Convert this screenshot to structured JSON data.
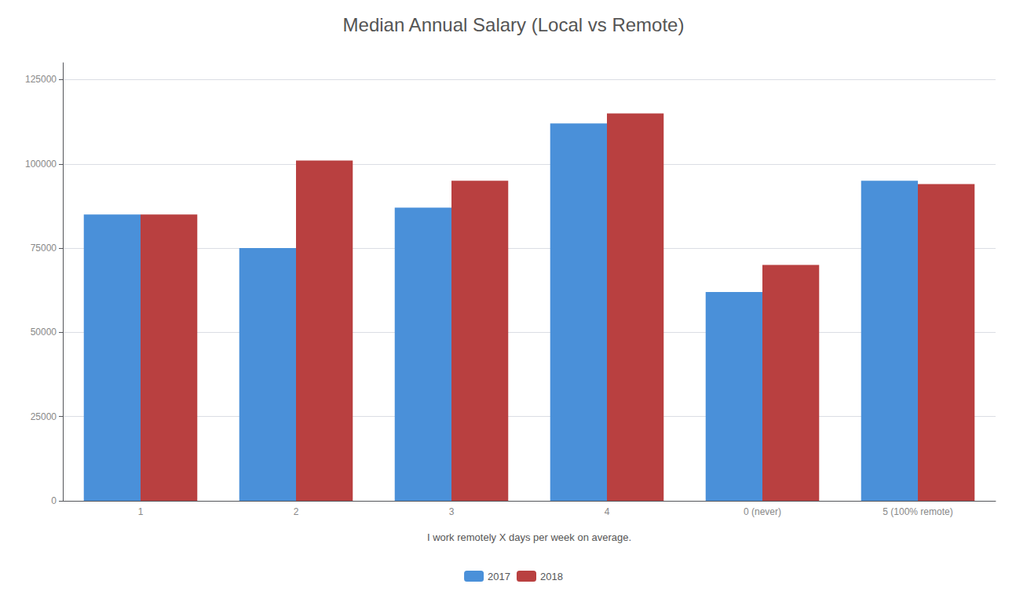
{
  "chart_data": {
    "type": "bar",
    "title": "Median Annual Salary (Local vs Remote)",
    "xlabel": "I work remotely X days per week on average.",
    "categories": [
      "1",
      "2",
      "3",
      "4",
      "0 (never)",
      "5 (100% remote)"
    ],
    "series": [
      {
        "name": "2017",
        "color": "#4A90D9",
        "values": [
          85000,
          75000,
          87000,
          112000,
          62000,
          95000
        ]
      },
      {
        "name": "2018",
        "color": "#B94040",
        "values": [
          85000,
          101000,
          95000,
          115000,
          70000,
          94000
        ]
      }
    ],
    "ylim": [
      0,
      130000
    ],
    "yticks": [
      0,
      25000,
      50000,
      75000,
      100000,
      125000
    ],
    "grid": true,
    "legend": "bottom"
  }
}
